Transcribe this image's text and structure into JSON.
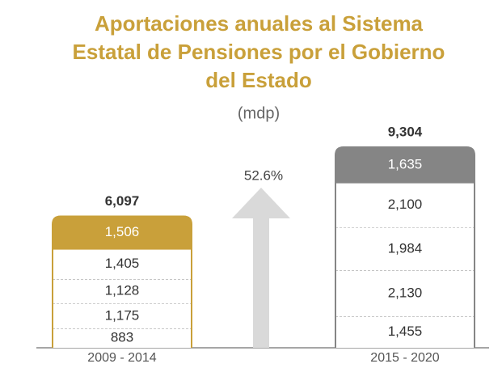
{
  "chart_data": {
    "type": "stacked-bar",
    "title": "Aportaciones anuales al Sistema Estatal de Pensiones por el Gobierno del Estado",
    "subtitle": "(mdp)",
    "annotation": "52.6%",
    "categories": [
      "2009 - 2014",
      "2015 - 2020"
    ],
    "stacks": [
      {
        "values": [
          883,
          1175,
          1128,
          1405,
          1506
        ],
        "value_labels": [
          "883",
          "1,175",
          "1,128",
          "1,405",
          "1,506"
        ],
        "total": 6097,
        "total_label": "6,097",
        "color": "#c9a03a"
      },
      {
        "values": [
          1455,
          2130,
          1984,
          2100,
          1635
        ],
        "value_labels": [
          "1,455",
          "2,130",
          "1,984",
          "2,100",
          "1,635"
        ],
        "total": 9304,
        "total_label": "9,304",
        "color": "#858585"
      }
    ]
  }
}
